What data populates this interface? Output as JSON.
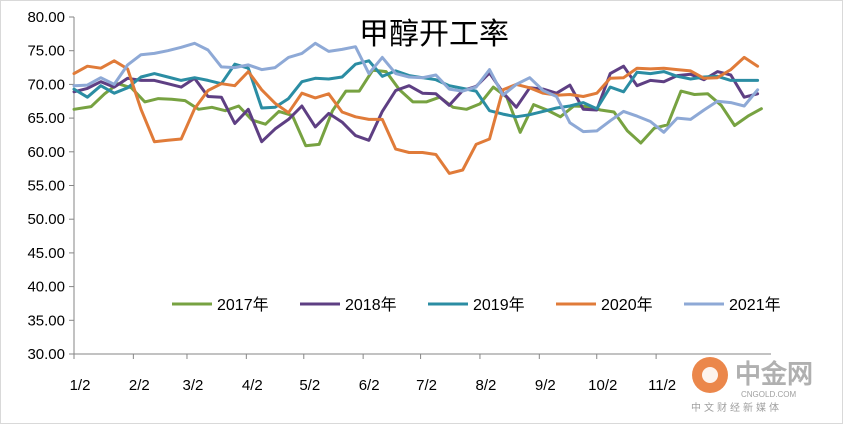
{
  "chart_data": {
    "type": "line",
    "title": "甲醇开工率",
    "x": [
      1,
      5,
      9,
      13,
      17,
      21,
      25,
      29,
      33,
      37,
      41,
      45,
      49,
      53,
      57,
      61,
      65,
      69,
      73,
      77,
      81,
      85,
      89,
      93,
      97,
      101,
      105,
      109,
      113,
      117,
      121,
      125,
      129,
      133,
      137,
      141,
      145,
      149,
      153,
      157,
      161,
      165,
      169,
      173,
      177,
      181,
      185,
      189,
      193,
      197,
      201,
      205,
      209,
      213,
      217,
      221,
      225,
      229,
      233,
      237,
      241,
      245,
      249,
      253,
      257,
      261,
      265,
      269,
      273,
      277,
      281,
      285,
      289,
      293,
      297,
      301,
      305,
      309,
      313,
      317,
      321,
      325,
      329,
      333,
      337,
      341,
      345,
      349,
      353,
      357,
      361
    ],
    "x_ticks": [
      1,
      32,
      60,
      91,
      121,
      152,
      182,
      213,
      244,
      274,
      305
    ],
    "x_tick_labels": [
      "1/2",
      "2/2",
      "3/2",
      "4/2",
      "5/2",
      "6/2",
      "7/2",
      "8/2",
      "9/2",
      "10/2",
      "11/2"
    ],
    "ylim": [
      30,
      80
    ],
    "y_ticks": [
      "30.00",
      "35.00",
      "40.00",
      "45.00",
      "50.00",
      "55.00",
      "60.00",
      "65.00",
      "70.00",
      "75.00",
      "80.00"
    ],
    "xlim": [
      1,
      365
    ],
    "grid": false,
    "legend_position": "bottom",
    "series": [
      {
        "name": "2017年",
        "color": "#77a241",
        "points": [
          [
            1,
            66.3
          ],
          [
            10,
            66.7
          ],
          [
            17,
            68.6
          ],
          [
            24,
            70.1
          ],
          [
            31,
            69.5
          ],
          [
            38,
            67.4
          ],
          [
            45,
            67.9
          ],
          [
            52,
            67.8
          ],
          [
            59,
            67.6
          ],
          [
            66,
            66.3
          ],
          [
            73,
            66.6
          ],
          [
            80,
            66.1
          ],
          [
            87,
            66.8
          ],
          [
            94,
            64.7
          ],
          [
            101,
            64.1
          ],
          [
            108,
            66.0
          ],
          [
            115,
            65.4
          ],
          [
            122,
            60.9
          ],
          [
            129,
            61.1
          ],
          [
            136,
            66.1
          ],
          [
            143,
            69.0
          ],
          [
            150,
            69.0
          ],
          [
            157,
            72.1
          ],
          [
            164,
            71.9
          ],
          [
            171,
            69.2
          ],
          [
            178,
            67.4
          ],
          [
            185,
            67.4
          ],
          [
            192,
            68.1
          ],
          [
            199,
            66.6
          ],
          [
            206,
            66.3
          ],
          [
            213,
            67.1
          ],
          [
            220,
            69.6
          ],
          [
            227,
            68.1
          ],
          [
            234,
            62.9
          ],
          [
            241,
            67.0
          ],
          [
            248,
            66.2
          ],
          [
            255,
            65.2
          ],
          [
            262,
            66.8
          ],
          [
            269,
            66.7
          ],
          [
            276,
            66.2
          ],
          [
            283,
            65.9
          ],
          [
            290,
            63.1
          ],
          [
            297,
            61.3
          ],
          [
            304,
            63.5
          ],
          [
            311,
            64.0
          ],
          [
            318,
            69.0
          ],
          [
            325,
            68.5
          ],
          [
            332,
            68.6
          ],
          [
            339,
            66.9
          ],
          [
            346,
            63.9
          ],
          [
            353,
            65.3
          ],
          [
            360,
            66.4
          ]
        ]
      },
      {
        "name": "2018年",
        "color": "#5e3f83",
        "points": [
          [
            1,
            68.9
          ],
          [
            8,
            69.4
          ],
          [
            15,
            70.4
          ],
          [
            22,
            69.6
          ],
          [
            29,
            70.9
          ],
          [
            36,
            70.6
          ],
          [
            43,
            70.6
          ],
          [
            50,
            70.1
          ],
          [
            57,
            69.6
          ],
          [
            64,
            70.9
          ],
          [
            71,
            68.2
          ],
          [
            78,
            68.1
          ],
          [
            85,
            64.2
          ],
          [
            92,
            66.3
          ],
          [
            99,
            61.5
          ],
          [
            106,
            63.4
          ],
          [
            113,
            64.8
          ],
          [
            120,
            66.8
          ],
          [
            127,
            63.7
          ],
          [
            134,
            65.7
          ],
          [
            141,
            64.4
          ],
          [
            148,
            62.4
          ],
          [
            155,
            61.7
          ],
          [
            162,
            66.0
          ],
          [
            169,
            69.1
          ],
          [
            176,
            69.8
          ],
          [
            183,
            68.7
          ],
          [
            190,
            68.6
          ],
          [
            197,
            66.9
          ],
          [
            204,
            69.1
          ],
          [
            211,
            69.7
          ],
          [
            218,
            71.7
          ],
          [
            225,
            68.8
          ],
          [
            232,
            66.6
          ],
          [
            239,
            69.5
          ],
          [
            246,
            69.3
          ],
          [
            253,
            68.7
          ],
          [
            260,
            69.9
          ],
          [
            267,
            66.3
          ],
          [
            274,
            66.2
          ],
          [
            281,
            71.6
          ],
          [
            288,
            72.7
          ],
          [
            295,
            69.8
          ],
          [
            302,
            70.6
          ],
          [
            309,
            70.4
          ],
          [
            316,
            71.3
          ],
          [
            323,
            71.5
          ],
          [
            330,
            70.7
          ],
          [
            337,
            71.9
          ],
          [
            344,
            71.4
          ],
          [
            351,
            68.1
          ],
          [
            358,
            68.6
          ]
        ]
      },
      {
        "name": "2019年",
        "color": "#2b8da3",
        "points": [
          [
            1,
            69.3
          ],
          [
            8,
            68.1
          ],
          [
            15,
            69.8
          ],
          [
            22,
            68.7
          ],
          [
            29,
            69.5
          ],
          [
            36,
            71.1
          ],
          [
            43,
            71.6
          ],
          [
            50,
            71.1
          ],
          [
            57,
            70.6
          ],
          [
            64,
            71.0
          ],
          [
            71,
            70.6
          ],
          [
            78,
            70.1
          ],
          [
            85,
            73.0
          ],
          [
            92,
            72.4
          ],
          [
            99,
            66.5
          ],
          [
            106,
            66.6
          ],
          [
            113,
            67.9
          ],
          [
            120,
            70.4
          ],
          [
            127,
            70.9
          ],
          [
            134,
            70.8
          ],
          [
            141,
            71.1
          ],
          [
            148,
            73.0
          ],
          [
            155,
            73.5
          ],
          [
            162,
            71.2
          ],
          [
            169,
            72.0
          ],
          [
            176,
            71.3
          ],
          [
            183,
            71.0
          ],
          [
            190,
            70.7
          ],
          [
            197,
            69.8
          ],
          [
            204,
            69.4
          ],
          [
            211,
            69.0
          ],
          [
            218,
            66.1
          ],
          [
            225,
            65.6
          ],
          [
            232,
            65.2
          ],
          [
            239,
            65.5
          ],
          [
            246,
            66.0
          ],
          [
            253,
            66.5
          ],
          [
            260,
            66.8
          ],
          [
            267,
            67.3
          ],
          [
            274,
            66.4
          ],
          [
            281,
            69.6
          ],
          [
            288,
            68.9
          ],
          [
            295,
            71.8
          ],
          [
            302,
            71.6
          ],
          [
            309,
            71.9
          ],
          [
            316,
            71.2
          ],
          [
            323,
            70.8
          ],
          [
            330,
            71.1
          ],
          [
            337,
            71.2
          ],
          [
            344,
            70.6
          ],
          [
            351,
            70.6
          ],
          [
            358,
            70.6
          ]
        ]
      },
      {
        "name": "2020年",
        "color": "#e07b39",
        "points": [
          [
            1,
            71.6
          ],
          [
            8,
            72.7
          ],
          [
            15,
            72.4
          ],
          [
            22,
            73.5
          ],
          [
            29,
            72.3
          ],
          [
            36,
            66.3
          ],
          [
            43,
            61.5
          ],
          [
            50,
            61.7
          ],
          [
            57,
            61.9
          ],
          [
            64,
            66.4
          ],
          [
            71,
            69.1
          ],
          [
            78,
            70.1
          ],
          [
            85,
            69.8
          ],
          [
            92,
            71.9
          ],
          [
            99,
            69.2
          ],
          [
            106,
            67.2
          ],
          [
            113,
            65.8
          ],
          [
            120,
            68.7
          ],
          [
            127,
            68.0
          ],
          [
            134,
            68.6
          ],
          [
            141,
            65.9
          ],
          [
            148,
            65.2
          ],
          [
            155,
            64.8
          ],
          [
            162,
            64.8
          ],
          [
            169,
            60.4
          ],
          [
            176,
            59.9
          ],
          [
            183,
            59.9
          ],
          [
            190,
            59.6
          ],
          [
            197,
            56.8
          ],
          [
            204,
            57.3
          ],
          [
            211,
            61.1
          ],
          [
            218,
            61.9
          ],
          [
            225,
            69.2
          ],
          [
            232,
            70.0
          ],
          [
            239,
            69.5
          ],
          [
            246,
            68.7
          ],
          [
            253,
            68.4
          ],
          [
            260,
            68.5
          ],
          [
            267,
            68.2
          ],
          [
            274,
            68.7
          ],
          [
            281,
            70.9
          ],
          [
            288,
            71.0
          ],
          [
            295,
            72.4
          ],
          [
            302,
            72.3
          ],
          [
            309,
            72.4
          ],
          [
            316,
            72.2
          ],
          [
            323,
            72.0
          ],
          [
            330,
            70.9
          ],
          [
            337,
            71.0
          ],
          [
            344,
            72.2
          ],
          [
            351,
            74.0
          ],
          [
            358,
            72.7
          ]
        ]
      },
      {
        "name": "2021年",
        "color": "#8ea9d6",
        "points": [
          [
            1,
            69.8
          ],
          [
            8,
            69.9
          ],
          [
            15,
            71.0
          ],
          [
            22,
            70.0
          ],
          [
            29,
            72.9
          ],
          [
            36,
            74.4
          ],
          [
            43,
            74.6
          ],
          [
            50,
            75.0
          ],
          [
            57,
            75.5
          ],
          [
            64,
            76.1
          ],
          [
            71,
            75.1
          ],
          [
            78,
            72.6
          ],
          [
            85,
            72.5
          ],
          [
            92,
            72.9
          ],
          [
            99,
            72.2
          ],
          [
            106,
            72.5
          ],
          [
            113,
            74.0
          ],
          [
            120,
            74.6
          ],
          [
            127,
            76.1
          ],
          [
            134,
            74.9
          ],
          [
            141,
            75.2
          ],
          [
            148,
            75.6
          ],
          [
            155,
            71.6
          ],
          [
            162,
            74.0
          ],
          [
            169,
            71.6
          ],
          [
            176,
            71.1
          ],
          [
            183,
            71.0
          ],
          [
            190,
            71.4
          ],
          [
            197,
            69.3
          ],
          [
            204,
            69.0
          ],
          [
            211,
            69.6
          ],
          [
            218,
            72.2
          ],
          [
            225,
            68.4
          ],
          [
            232,
            70.0
          ],
          [
            239,
            71.0
          ],
          [
            246,
            69.1
          ],
          [
            253,
            68.2
          ],
          [
            260,
            64.3
          ],
          [
            267,
            63.0
          ],
          [
            274,
            63.1
          ],
          [
            281,
            64.6
          ],
          [
            288,
            66.0
          ],
          [
            295,
            65.3
          ],
          [
            302,
            64.5
          ],
          [
            309,
            62.9
          ],
          [
            316,
            65.0
          ],
          [
            323,
            64.8
          ],
          [
            330,
            66.2
          ],
          [
            337,
            67.5
          ],
          [
            344,
            67.3
          ],
          [
            351,
            66.8
          ],
          [
            358,
            69.2
          ]
        ]
      }
    ]
  },
  "watermark": {
    "brand": "中金网",
    "domain": "CNGOLD.COM",
    "tagline": "中文财经新媒体",
    "color": "#b0b0b0",
    "logo_color": "#e8722b"
  }
}
